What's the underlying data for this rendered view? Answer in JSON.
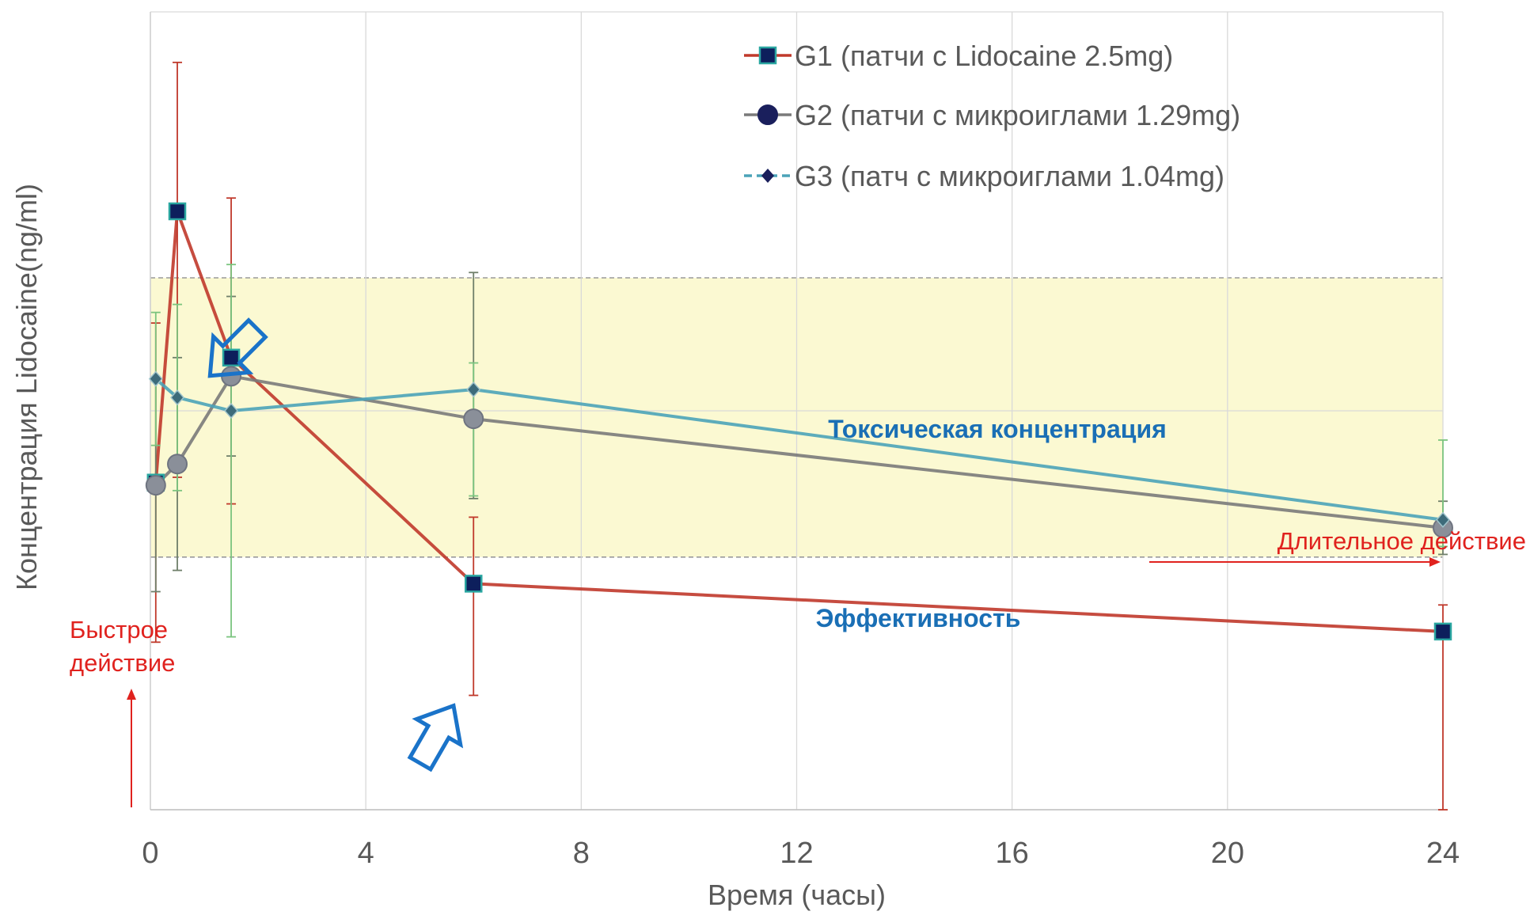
{
  "chart_data": {
    "type": "line",
    "xlabel": "Время  (часы)",
    "ylabel": "Концентрация  Lidocaine(ng/ml)",
    "xlim": [
      0,
      24
    ],
    "ylim": [
      0,
      3
    ],
    "x_ticks": [
      "0",
      "4",
      "8",
      "12",
      "16",
      "20",
      "24"
    ],
    "grid": true,
    "legend_position": "top-right",
    "series": [
      {
        "name": "G1 (патчи с Lidocaine 2.5mg)",
        "marker": "square",
        "line_color": "#c0392b",
        "marker_color": "#0d1f5c",
        "points": [
          {
            "x": 0.1,
            "y": 1.23,
            "err_low": 0.6,
            "err_high": 0.6
          },
          {
            "x": 0.5,
            "y": 2.25,
            "err_low": 1.0,
            "err_high": 0.56
          },
          {
            "x": 1.5,
            "y": 1.7,
            "err_low": 0.55,
            "err_high": 0.6
          },
          {
            "x": 6,
            "y": 0.85,
            "err_low": 0.42,
            "err_high": 0.25
          },
          {
            "x": 24,
            "y": 0.67,
            "err_low": 0.7,
            "err_high": 0.1
          }
        ]
      },
      {
        "name": "G2 (патчи с микроиглами 1.29mg)",
        "marker": "circle",
        "line_color": "#7a7a7a",
        "marker_color": "#8a8f99",
        "points": [
          {
            "x": 0.1,
            "y": 1.22,
            "err_low": 0.4,
            "err_high": 0.4
          },
          {
            "x": 0.5,
            "y": 1.3,
            "err_low": 0.4,
            "err_high": 0.4
          },
          {
            "x": 1.5,
            "y": 1.63,
            "err_low": 0.3,
            "err_high": 0.3
          },
          {
            "x": 6,
            "y": 1.47,
            "err_low": 0.3,
            "err_high": 0.55
          },
          {
            "x": 24,
            "y": 1.06,
            "err_low": 0.1,
            "err_high": 0.1
          }
        ]
      },
      {
        "name": "G3 (патч с микроиглами 1.04mg)",
        "marker": "diamond",
        "line_color": "#4ba3b8",
        "marker_color": "#3d6b7a",
        "points": [
          {
            "x": 0.1,
            "y": 1.62,
            "err_low": 0.25,
            "err_high": 0.25
          },
          {
            "x": 0.5,
            "y": 1.55,
            "err_low": 0.35,
            "err_high": 0.35
          },
          {
            "x": 1.5,
            "y": 1.5,
            "err_low": 0.85,
            "err_high": 0.55
          },
          {
            "x": 6,
            "y": 1.58,
            "err_low": 0.4,
            "err_high": 0.1
          },
          {
            "x": 24,
            "y": 1.09,
            "err_low": 0.1,
            "err_high": 0.3
          }
        ]
      }
    ],
    "bands": {
      "effective_min": 0.95,
      "toxic_max": 2.0,
      "fill_color": "#fbf9d2"
    },
    "annotations": {
      "toxic_label": "Токсическая  концентрация",
      "effective_label": "Эффективность",
      "fast_action_line1": "Быстрое",
      "fast_action_line2": "действие",
      "long_action_label": "Длительное действие"
    },
    "colors": {
      "annotation_blue": "#1a6fb5",
      "annotation_red": "#e0221e",
      "arrow_outline": "#1a73c9"
    }
  }
}
